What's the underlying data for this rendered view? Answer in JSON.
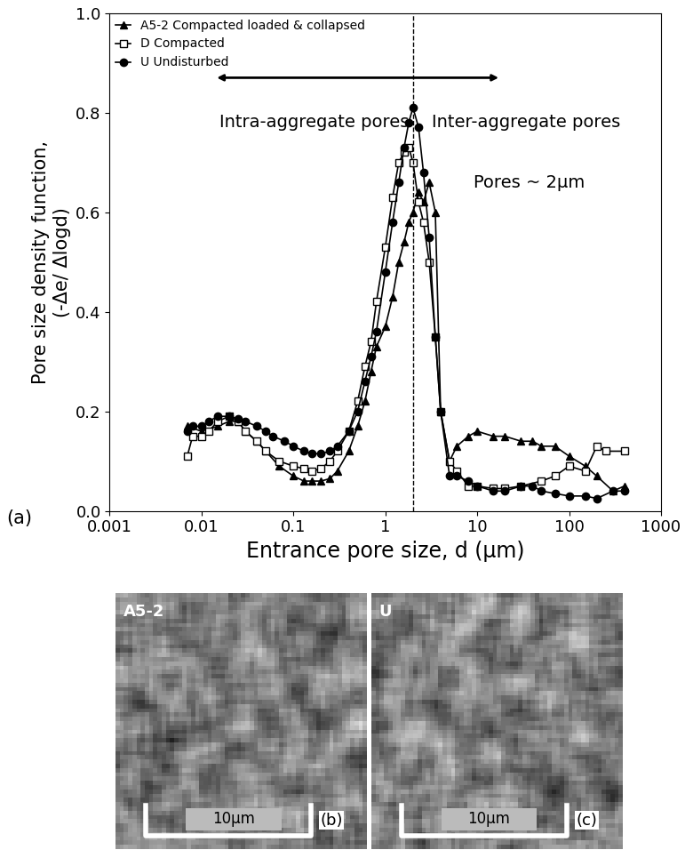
{
  "chart_data": {
    "type": "line",
    "log": "x",
    "grid": false,
    "legend": "upper left",
    "xlabel": "Entrance pore size, d (µm)",
    "ylabel": "Pore size density function,\n(-Δe/ Δlogd)",
    "xlim": [
      0.001,
      1000
    ],
    "xticks": [
      0.001,
      0.01,
      0.1,
      1,
      10,
      100,
      1000
    ],
    "ylim": [
      0.0,
      1.0
    ],
    "yticks": [
      0.0,
      0.2,
      0.4,
      0.6,
      0.8,
      1.0
    ],
    "reference_x": 2,
    "annotations": [
      "Intra-aggregate pores",
      "Inter-aggregate pores",
      "Pores ~ 2µm"
    ],
    "series": [
      {
        "name": "A5-2 Compacted loaded & collapsed",
        "color": "#000000",
        "marker": "triangle",
        "line_style": "solid",
        "x": [
          0.007,
          0.01,
          0.015,
          0.02,
          0.025,
          0.03,
          0.04,
          0.05,
          0.07,
          0.1,
          0.13,
          0.16,
          0.2,
          0.25,
          0.3,
          0.4,
          0.5,
          0.6,
          0.7,
          0.8,
          1.0,
          1.2,
          1.4,
          1.6,
          1.8,
          2.0,
          2.3,
          2.6,
          3.0,
          3.5,
          4.0,
          5.0,
          6.0,
          8.0,
          10,
          15,
          20,
          30,
          40,
          50,
          70,
          100,
          150,
          200,
          300,
          400
        ],
        "values": [
          0.17,
          0.16,
          0.17,
          0.18,
          0.18,
          0.16,
          0.14,
          0.12,
          0.09,
          0.07,
          0.06,
          0.06,
          0.06,
          0.065,
          0.08,
          0.12,
          0.17,
          0.22,
          0.28,
          0.33,
          0.37,
          0.43,
          0.5,
          0.54,
          0.58,
          0.6,
          0.64,
          0.62,
          0.66,
          0.6,
          0.2,
          0.1,
          0.13,
          0.15,
          0.16,
          0.15,
          0.15,
          0.14,
          0.14,
          0.13,
          0.13,
          0.11,
          0.09,
          0.07,
          0.04,
          0.05
        ]
      },
      {
        "name": "D Compacted",
        "color": "#000000",
        "marker": "square_open",
        "line_style": "solid",
        "x": [
          0.007,
          0.008,
          0.01,
          0.012,
          0.015,
          0.02,
          0.025,
          0.03,
          0.04,
          0.05,
          0.07,
          0.1,
          0.13,
          0.16,
          0.2,
          0.25,
          0.3,
          0.4,
          0.5,
          0.6,
          0.7,
          0.8,
          1.0,
          1.2,
          1.4,
          1.6,
          1.8,
          2.0,
          2.3,
          2.6,
          3.0,
          3.5,
          4.0,
          5.0,
          6.0,
          8.0,
          10,
          15,
          20,
          30,
          50,
          70,
          100,
          150,
          200,
          250,
          400
        ],
        "values": [
          0.11,
          0.15,
          0.15,
          0.16,
          0.18,
          0.19,
          0.18,
          0.16,
          0.14,
          0.12,
          0.1,
          0.09,
          0.085,
          0.08,
          0.085,
          0.1,
          0.12,
          0.16,
          0.22,
          0.29,
          0.34,
          0.42,
          0.53,
          0.63,
          0.7,
          0.72,
          0.73,
          0.7,
          0.62,
          0.58,
          0.5,
          0.35,
          0.2,
          0.1,
          0.08,
          0.05,
          0.05,
          0.045,
          0.045,
          0.05,
          0.06,
          0.07,
          0.09,
          0.08,
          0.13,
          0.12,
          0.12
        ]
      },
      {
        "name": "U Undisturbed",
        "color": "#000000",
        "marker": "circle",
        "line_style": "solid",
        "x": [
          0.007,
          0.008,
          0.01,
          0.012,
          0.015,
          0.02,
          0.025,
          0.03,
          0.04,
          0.05,
          0.06,
          0.08,
          0.1,
          0.13,
          0.16,
          0.2,
          0.25,
          0.3,
          0.4,
          0.5,
          0.6,
          0.7,
          0.8,
          1.0,
          1.2,
          1.4,
          1.6,
          1.8,
          2.0,
          2.3,
          2.6,
          3.0,
          3.5,
          4.0,
          5.0,
          6.0,
          8.0,
          10,
          15,
          20,
          30,
          40,
          50,
          70,
          100,
          150,
          200,
          300,
          400
        ],
        "values": [
          0.16,
          0.17,
          0.17,
          0.18,
          0.19,
          0.19,
          0.185,
          0.18,
          0.17,
          0.16,
          0.15,
          0.14,
          0.13,
          0.12,
          0.115,
          0.115,
          0.12,
          0.13,
          0.16,
          0.2,
          0.26,
          0.31,
          0.36,
          0.48,
          0.58,
          0.66,
          0.73,
          0.78,
          0.81,
          0.77,
          0.68,
          0.55,
          0.35,
          0.2,
          0.07,
          0.07,
          0.06,
          0.05,
          0.04,
          0.04,
          0.05,
          0.05,
          0.04,
          0.035,
          0.03,
          0.03,
          0.025,
          0.04,
          0.04
        ]
      }
    ]
  },
  "panel_label": "(a)",
  "images": [
    {
      "label": "A5-2",
      "scale_bar": "10µm",
      "panel": "(b)"
    },
    {
      "label": "U",
      "scale_bar": "10µm",
      "panel": "(c)"
    }
  ]
}
